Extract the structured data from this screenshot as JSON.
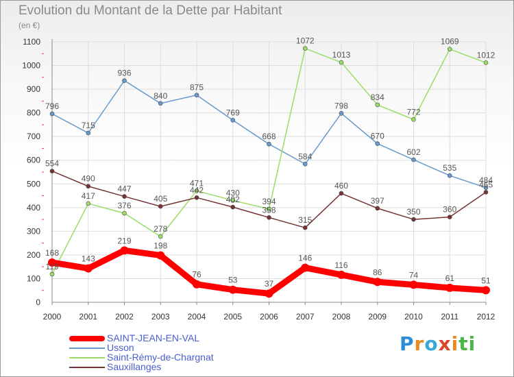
{
  "title": "Evolution du Montant de la Dette par Habitant",
  "unit_label": "(en €)",
  "logo_text": "Proxiti",
  "chart_data": {
    "type": "line",
    "categories": [
      "2000",
      "2001",
      "2002",
      "2003",
      "2004",
      "2005",
      "2006",
      "2007",
      "2008",
      "2009",
      "2010",
      "2011",
      "2012"
    ],
    "ylim": [
      0,
      1100
    ],
    "yticks": [
      0,
      100,
      200,
      300,
      400,
      500,
      600,
      700,
      800,
      900,
      1000,
      1100
    ],
    "grid": true,
    "legend_position": "bottom-left",
    "series": [
      {
        "name": "Usson",
        "color": "#6699cc",
        "values": [
          796,
          715,
          936,
          840,
          875,
          769,
          668,
          584,
          798,
          670,
          602,
          535,
          484
        ],
        "labels": [
          "796",
          "715",
          "936",
          "840",
          "875",
          "769",
          "668",
          "584",
          "798",
          "670",
          "602",
          "535",
          "484"
        ]
      },
      {
        "name": "Saint-Rémy-de-Chargnat",
        "color": "#99dd66",
        "values": [
          119,
          417,
          376,
          278,
          471,
          430,
          394,
          1072,
          1013,
          834,
          772,
          1069,
          1012
        ],
        "labels": [
          "119",
          "417",
          "376",
          "278",
          "471",
          "430",
          "394",
          "1072",
          "1013",
          "834",
          "772",
          "1069",
          "1012"
        ]
      },
      {
        "name": "Sauxillanges",
        "color": "#773333",
        "values": [
          554,
          490,
          447,
          405,
          442,
          402,
          358,
          315,
          460,
          397,
          350,
          360,
          465
        ],
        "labels": [
          "554",
          "490",
          "447",
          "405",
          "442",
          "402",
          "358",
          "315",
          "460",
          "397",
          "350",
          "360",
          "465"
        ]
      },
      {
        "name": "SAINT-JEAN-EN-VAL",
        "color": "#ff0000",
        "values": [
          168,
          143,
          219,
          198,
          76,
          53,
          37,
          146,
          116,
          86,
          74,
          61,
          51
        ],
        "labels": [
          "168",
          "143",
          "219",
          "198",
          "76",
          "53",
          "37",
          "146",
          "116",
          "86",
          "74",
          "61",
          "51"
        ]
      }
    ]
  },
  "legend": [
    {
      "label": "SAINT-JEAN-EN-VAL",
      "color": "#ff0000",
      "thickness": 8
    },
    {
      "label": "Usson",
      "color": "#6699cc",
      "thickness": 2
    },
    {
      "label": "Saint-Rémy-de-Chargnat",
      "color": "#99dd66",
      "thickness": 2
    },
    {
      "label": "Sauxillanges",
      "color": "#773333",
      "thickness": 2
    }
  ]
}
